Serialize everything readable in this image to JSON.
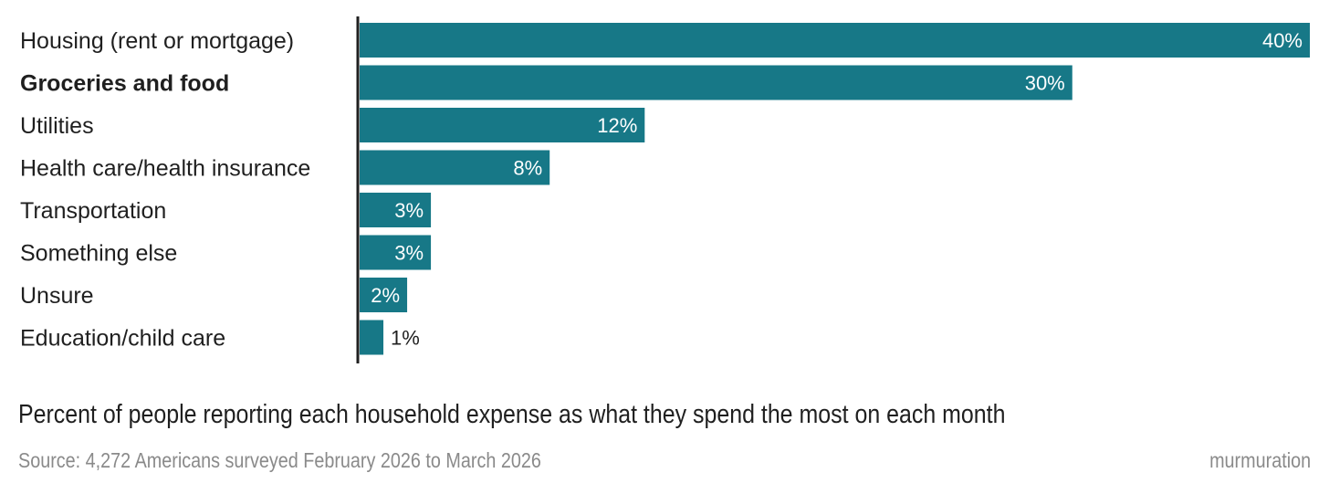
{
  "chart_data": {
    "type": "bar",
    "orientation": "horizontal",
    "categories": [
      "Housing (rent or mortgage)",
      "Groceries and food",
      "Utilities",
      "Health care/health insurance",
      "Transportation",
      "Something else",
      "Unsure",
      "Education/child care"
    ],
    "values": [
      40,
      30,
      12,
      8,
      3,
      3,
      2,
      1
    ],
    "value_labels": [
      "40%",
      "30%",
      "12%",
      "8%",
      "3%",
      "3%",
      "2%",
      "1%"
    ],
    "highlighted_category": "Groceries and food",
    "xlim": [
      0,
      40
    ],
    "unit": "%",
    "grid": false,
    "title": "Percent of people reporting each household expense as what they spend the most on each month",
    "source": "Source: 4,272 Americans surveyed February 2026 to March 2026",
    "brand": "murmuration",
    "colors": {
      "bar": "#177887",
      "axis": "#1f1f1f",
      "label": "#1f1f1f",
      "inside_label": "#ffffff",
      "muted": "#8a8a8a"
    }
  }
}
